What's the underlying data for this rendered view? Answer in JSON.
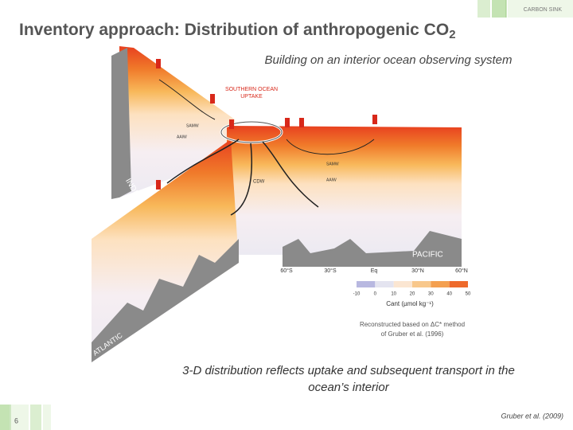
{
  "header": {
    "tag": "CARBON SINK",
    "title": "Inventory approach: Distribution of anthropogenic CO",
    "title_subscript": "2"
  },
  "subtitle": "Building on an interior ocean observing system",
  "figure": {
    "labels": {
      "uptake": [
        "SOUTHERN OCEAN",
        "UPTAKE"
      ],
      "indian": "INDIAN",
      "pacific": "PACIFIC",
      "atlantic": "ATLANTIC",
      "cdw": "CDW",
      "samw": "SAMW",
      "aaiw": "AAIW",
      "samw_indian": "SAMW",
      "aaiw_indian": "AAIW"
    },
    "latitudes": [
      "60°S",
      "30°S",
      "Eq",
      "30°N",
      "60°N"
    ],
    "colorbar": {
      "ticks": [
        "-10",
        "0",
        "10",
        "20",
        "30",
        "40",
        "50"
      ],
      "label": "Cant (µmol kg⁻¹)"
    },
    "caption": [
      "Reconstructed based on ΔC* method",
      "of Gruber et al. (1996)"
    ]
  },
  "summary": [
    "3-D distribution reflects uptake and subsequent transport in the",
    "ocean’s interior"
  ],
  "footer": {
    "page": "6",
    "citation": "Gruber et al. (2009)"
  }
}
